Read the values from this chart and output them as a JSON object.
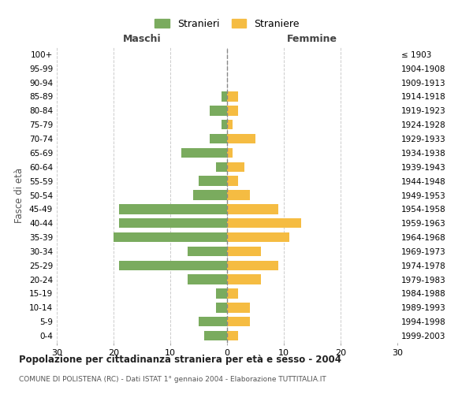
{
  "age_groups": [
    "0-4",
    "5-9",
    "10-14",
    "15-19",
    "20-24",
    "25-29",
    "30-34",
    "35-39",
    "40-44",
    "45-49",
    "50-54",
    "55-59",
    "60-64",
    "65-69",
    "70-74",
    "75-79",
    "80-84",
    "85-89",
    "90-94",
    "95-99",
    "100+"
  ],
  "birth_years": [
    "1999-2003",
    "1994-1998",
    "1989-1993",
    "1984-1988",
    "1979-1983",
    "1974-1978",
    "1969-1973",
    "1964-1968",
    "1959-1963",
    "1954-1958",
    "1949-1953",
    "1944-1948",
    "1939-1943",
    "1934-1938",
    "1929-1933",
    "1924-1928",
    "1919-1923",
    "1914-1918",
    "1909-1913",
    "1904-1908",
    "≤ 1903"
  ],
  "males": [
    4,
    5,
    2,
    2,
    7,
    19,
    7,
    20,
    19,
    19,
    6,
    5,
    2,
    8,
    3,
    1,
    3,
    1,
    0,
    0,
    0
  ],
  "females": [
    2,
    4,
    4,
    2,
    6,
    9,
    6,
    11,
    13,
    9,
    4,
    2,
    3,
    1,
    5,
    1,
    2,
    2,
    0,
    0,
    0
  ],
  "male_color": "#7aab5e",
  "female_color": "#f5bc42",
  "grid_color": "#cccccc",
  "dashed_line_color": "#888888",
  "background_color": "#ffffff",
  "title": "Popolazione per cittadinanza straniera per età e sesso - 2004",
  "subtitle": "COMUNE DI POLISTENA (RC) - Dati ISTAT 1° gennaio 2004 - Elaborazione TUTTITALIA.IT",
  "xlabel_left": "Maschi",
  "xlabel_right": "Femmine",
  "ylabel_left": "Fasce di età",
  "legend_male": "Stranieri",
  "legend_female": "Straniere",
  "xlim": 30
}
